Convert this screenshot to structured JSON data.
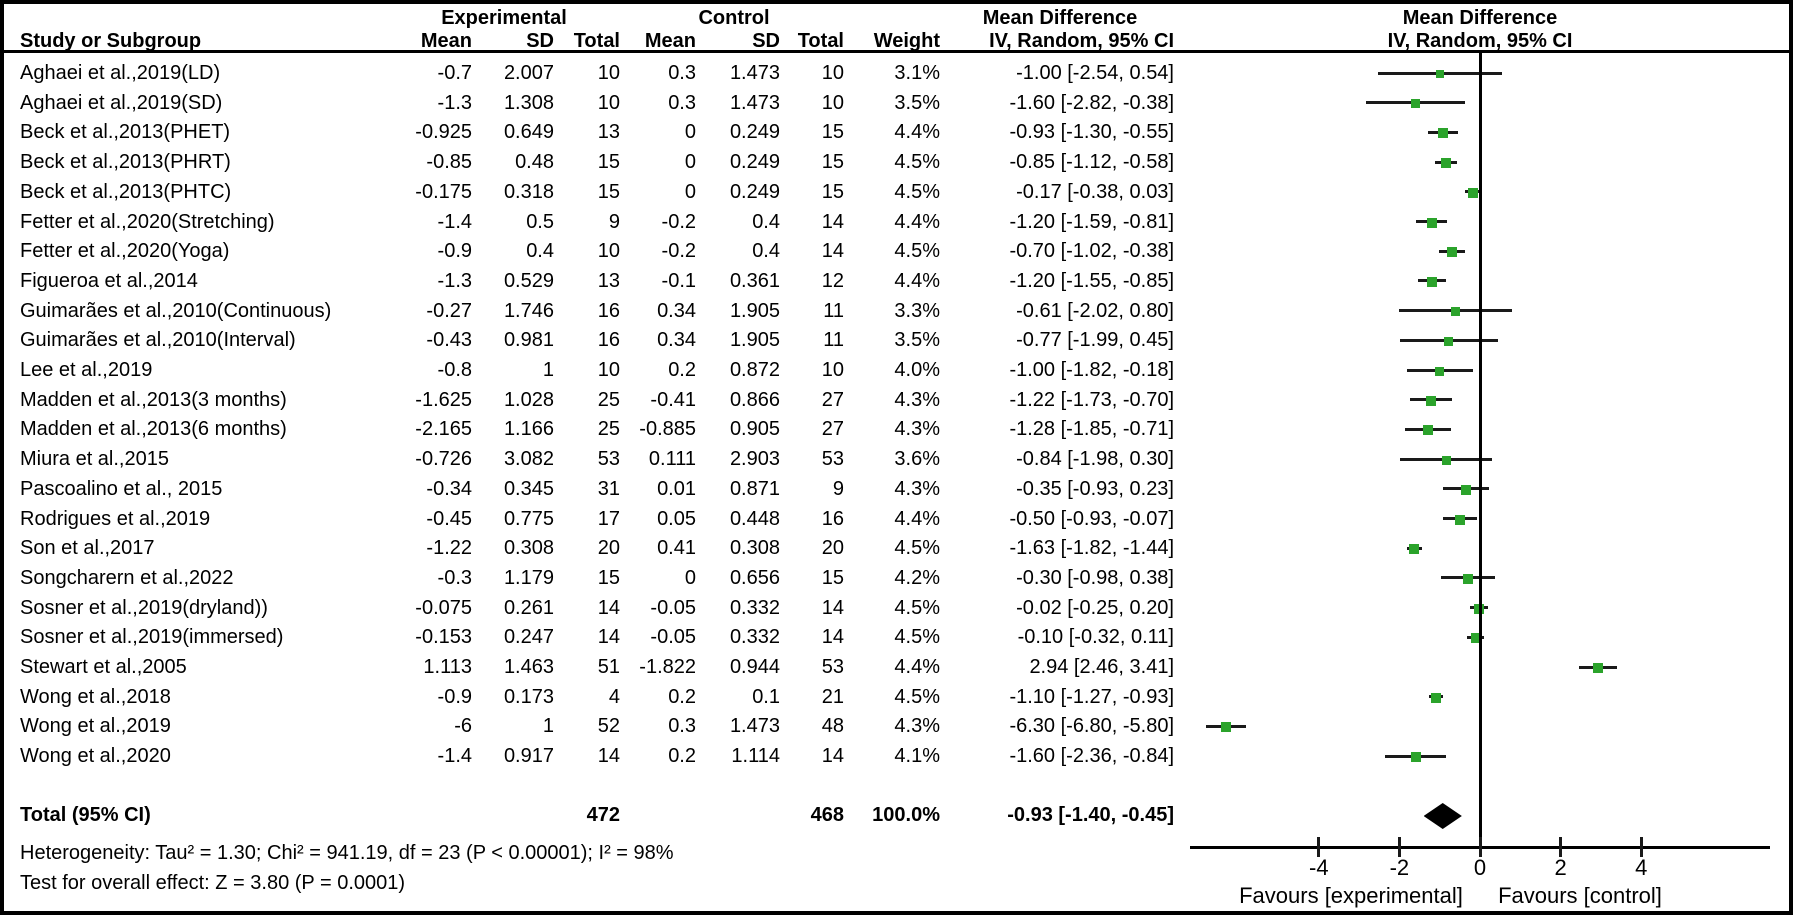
{
  "header": {
    "group_experimental": "Experimental",
    "group_control": "Control",
    "group_mean_difference": "Mean Difference",
    "col_study": "Study or Subgroup",
    "col_mean": "Mean",
    "col_sd": "SD",
    "col_total": "Total",
    "col_weight": "Weight",
    "col_ci": "IV, Random, 95% CI"
  },
  "chart_data": {
    "type": "forest",
    "effect_measure": "Mean Difference",
    "model": "IV, Random, 95% CI",
    "colors": {
      "square": "#2ba32b",
      "diamond": "#000000",
      "line": "#1a1a1a"
    },
    "axis": {
      "ticks": [
        -4,
        -2,
        0,
        2,
        4
      ],
      "range": [
        -7.2,
        7.2
      ],
      "zero_line": 0,
      "favours_left": "Favours [experimental]",
      "favours_right": "Favours [control]"
    },
    "studies": [
      {
        "name": "Aghaei et al.,2019(LD)",
        "exp_mean": "-0.7",
        "exp_sd": "2.007",
        "exp_total": "10",
        "ctrl_mean": "0.3",
        "ctrl_sd": "1.473",
        "ctrl_total": "10",
        "weight": "3.1%",
        "weight_value": 3.1,
        "md": -1.0,
        "ci_low": -2.54,
        "ci_high": 0.54,
        "ci_label": "-1.00 [-2.54, 0.54]"
      },
      {
        "name": "Aghaei et al.,2019(SD)",
        "exp_mean": "-1.3",
        "exp_sd": "1.308",
        "exp_total": "10",
        "ctrl_mean": "0.3",
        "ctrl_sd": "1.473",
        "ctrl_total": "10",
        "weight": "3.5%",
        "weight_value": 3.5,
        "md": -1.6,
        "ci_low": -2.82,
        "ci_high": -0.38,
        "ci_label": "-1.60 [-2.82, -0.38]"
      },
      {
        "name": "Beck et al.,2013(PHET)",
        "exp_mean": "-0.925",
        "exp_sd": "0.649",
        "exp_total": "13",
        "ctrl_mean": "0",
        "ctrl_sd": "0.249",
        "ctrl_total": "15",
        "weight": "4.4%",
        "weight_value": 4.4,
        "md": -0.93,
        "ci_low": -1.3,
        "ci_high": -0.55,
        "ci_label": "-0.93 [-1.30, -0.55]"
      },
      {
        "name": "Beck et al.,2013(PHRT)",
        "exp_mean": "-0.85",
        "exp_sd": "0.48",
        "exp_total": "15",
        "ctrl_mean": "0",
        "ctrl_sd": "0.249",
        "ctrl_total": "15",
        "weight": "4.5%",
        "weight_value": 4.5,
        "md": -0.85,
        "ci_low": -1.12,
        "ci_high": -0.58,
        "ci_label": "-0.85 [-1.12, -0.58]"
      },
      {
        "name": "Beck et al.,2013(PHTC)",
        "exp_mean": "-0.175",
        "exp_sd": "0.318",
        "exp_total": "15",
        "ctrl_mean": "0",
        "ctrl_sd": "0.249",
        "ctrl_total": "15",
        "weight": "4.5%",
        "weight_value": 4.5,
        "md": -0.17,
        "ci_low": -0.38,
        "ci_high": 0.03,
        "ci_label": "-0.17 [-0.38, 0.03]"
      },
      {
        "name": "Fetter et al.,2020(Stretching)",
        "exp_mean": "-1.4",
        "exp_sd": "0.5",
        "exp_total": "9",
        "ctrl_mean": "-0.2",
        "ctrl_sd": "0.4",
        "ctrl_total": "14",
        "weight": "4.4%",
        "weight_value": 4.4,
        "md": -1.2,
        "ci_low": -1.59,
        "ci_high": -0.81,
        "ci_label": "-1.20 [-1.59, -0.81]"
      },
      {
        "name": "Fetter et al.,2020(Yoga)",
        "exp_mean": "-0.9",
        "exp_sd": "0.4",
        "exp_total": "10",
        "ctrl_mean": "-0.2",
        "ctrl_sd": "0.4",
        "ctrl_total": "14",
        "weight": "4.5%",
        "weight_value": 4.5,
        "md": -0.7,
        "ci_low": -1.02,
        "ci_high": -0.38,
        "ci_label": "-0.70 [-1.02, -0.38]"
      },
      {
        "name": "Figueroa et al.,2014",
        "exp_mean": "-1.3",
        "exp_sd": "0.529",
        "exp_total": "13",
        "ctrl_mean": "-0.1",
        "ctrl_sd": "0.361",
        "ctrl_total": "12",
        "weight": "4.4%",
        "weight_value": 4.4,
        "md": -1.2,
        "ci_low": -1.55,
        "ci_high": -0.85,
        "ci_label": "-1.20 [-1.55, -0.85]"
      },
      {
        "name": "Guimarães et al.,2010(Continuous)",
        "exp_mean": "-0.27",
        "exp_sd": "1.746",
        "exp_total": "16",
        "ctrl_mean": "0.34",
        "ctrl_sd": "1.905",
        "ctrl_total": "11",
        "weight": "3.3%",
        "weight_value": 3.3,
        "md": -0.61,
        "ci_low": -2.02,
        "ci_high": 0.8,
        "ci_label": "-0.61 [-2.02, 0.80]"
      },
      {
        "name": "Guimarães et al.,2010(Interval)",
        "exp_mean": "-0.43",
        "exp_sd": "0.981",
        "exp_total": "16",
        "ctrl_mean": "0.34",
        "ctrl_sd": "1.905",
        "ctrl_total": "11",
        "weight": "3.5%",
        "weight_value": 3.5,
        "md": -0.77,
        "ci_low": -1.99,
        "ci_high": 0.45,
        "ci_label": "-0.77 [-1.99, 0.45]"
      },
      {
        "name": "Lee et al.,2019",
        "exp_mean": "-0.8",
        "exp_sd": "1",
        "exp_total": "10",
        "ctrl_mean": "0.2",
        "ctrl_sd": "0.872",
        "ctrl_total": "10",
        "weight": "4.0%",
        "weight_value": 4.0,
        "md": -1.0,
        "ci_low": -1.82,
        "ci_high": -0.18,
        "ci_label": "-1.00 [-1.82, -0.18]"
      },
      {
        "name": "Madden et al.,2013(3 months)",
        "exp_mean": "-1.625",
        "exp_sd": "1.028",
        "exp_total": "25",
        "ctrl_mean": "-0.41",
        "ctrl_sd": "0.866",
        "ctrl_total": "27",
        "weight": "4.3%",
        "weight_value": 4.3,
        "md": -1.22,
        "ci_low": -1.73,
        "ci_high": -0.7,
        "ci_label": "-1.22 [-1.73, -0.70]"
      },
      {
        "name": "Madden et al.,2013(6 months)",
        "exp_mean": "-2.165",
        "exp_sd": "1.166",
        "exp_total": "25",
        "ctrl_mean": "-0.885",
        "ctrl_sd": "0.905",
        "ctrl_total": "27",
        "weight": "4.3%",
        "weight_value": 4.3,
        "md": -1.28,
        "ci_low": -1.85,
        "ci_high": -0.71,
        "ci_label": "-1.28 [-1.85, -0.71]"
      },
      {
        "name": "Miura et al.,2015",
        "exp_mean": "-0.726",
        "exp_sd": "3.082",
        "exp_total": "53",
        "ctrl_mean": "0.111",
        "ctrl_sd": "2.903",
        "ctrl_total": "53",
        "weight": "3.6%",
        "weight_value": 3.6,
        "md": -0.84,
        "ci_low": -1.98,
        "ci_high": 0.3,
        "ci_label": "-0.84 [-1.98, 0.30]"
      },
      {
        "name": "Pascoalino et al., 2015",
        "exp_mean": "-0.34",
        "exp_sd": "0.345",
        "exp_total": "31",
        "ctrl_mean": "0.01",
        "ctrl_sd": "0.871",
        "ctrl_total": "9",
        "weight": "4.3%",
        "weight_value": 4.3,
        "md": -0.35,
        "ci_low": -0.93,
        "ci_high": 0.23,
        "ci_label": "-0.35 [-0.93, 0.23]"
      },
      {
        "name": "Rodrigues et al.,2019",
        "exp_mean": "-0.45",
        "exp_sd": "0.775",
        "exp_total": "17",
        "ctrl_mean": "0.05",
        "ctrl_sd": "0.448",
        "ctrl_total": "16",
        "weight": "4.4%",
        "weight_value": 4.4,
        "md": -0.5,
        "ci_low": -0.93,
        "ci_high": -0.07,
        "ci_label": "-0.50 [-0.93, -0.07]"
      },
      {
        "name": "Son et al.,2017",
        "exp_mean": "-1.22",
        "exp_sd": "0.308",
        "exp_total": "20",
        "ctrl_mean": "0.41",
        "ctrl_sd": "0.308",
        "ctrl_total": "20",
        "weight": "4.5%",
        "weight_value": 4.5,
        "md": -1.63,
        "ci_low": -1.82,
        "ci_high": -1.44,
        "ci_label": "-1.63 [-1.82, -1.44]"
      },
      {
        "name": "Songcharern et al.,2022",
        "exp_mean": "-0.3",
        "exp_sd": "1.179",
        "exp_total": "15",
        "ctrl_mean": "0",
        "ctrl_sd": "0.656",
        "ctrl_total": "15",
        "weight": "4.2%",
        "weight_value": 4.2,
        "md": -0.3,
        "ci_low": -0.98,
        "ci_high": 0.38,
        "ci_label": "-0.30 [-0.98, 0.38]"
      },
      {
        "name": "Sosner et al.,2019(dryland))",
        "exp_mean": "-0.075",
        "exp_sd": "0.261",
        "exp_total": "14",
        "ctrl_mean": "-0.05",
        "ctrl_sd": "0.332",
        "ctrl_total": "14",
        "weight": "4.5%",
        "weight_value": 4.5,
        "md": -0.02,
        "ci_low": -0.25,
        "ci_high": 0.2,
        "ci_label": "-0.02 [-0.25, 0.20]"
      },
      {
        "name": "Sosner et al.,2019(immersed)",
        "exp_mean": "-0.153",
        "exp_sd": "0.247",
        "exp_total": "14",
        "ctrl_mean": "-0.05",
        "ctrl_sd": "0.332",
        "ctrl_total": "14",
        "weight": "4.5%",
        "weight_value": 4.5,
        "md": -0.1,
        "ci_low": -0.32,
        "ci_high": 0.11,
        "ci_label": "-0.10 [-0.32, 0.11]"
      },
      {
        "name": "Stewart et al.,2005",
        "exp_mean": "1.113",
        "exp_sd": "1.463",
        "exp_total": "51",
        "ctrl_mean": "-1.822",
        "ctrl_sd": "0.944",
        "ctrl_total": "53",
        "weight": "4.4%",
        "weight_value": 4.4,
        "md": 2.94,
        "ci_low": 2.46,
        "ci_high": 3.41,
        "ci_label": "2.94 [2.46, 3.41]"
      },
      {
        "name": "Wong et al.,2018",
        "exp_mean": "-0.9",
        "exp_sd": "0.173",
        "exp_total": "4",
        "ctrl_mean": "0.2",
        "ctrl_sd": "0.1",
        "ctrl_total": "21",
        "weight": "4.5%",
        "weight_value": 4.5,
        "md": -1.1,
        "ci_low": -1.27,
        "ci_high": -0.93,
        "ci_label": "-1.10 [-1.27, -0.93]"
      },
      {
        "name": "Wong et al.,2019",
        "exp_mean": "-6",
        "exp_sd": "1",
        "exp_total": "52",
        "ctrl_mean": "0.3",
        "ctrl_sd": "1.473",
        "ctrl_total": "48",
        "weight": "4.3%",
        "weight_value": 4.3,
        "md": -6.3,
        "ci_low": -6.8,
        "ci_high": -5.8,
        "ci_label": "-6.30 [-6.80, -5.80]"
      },
      {
        "name": "Wong et al.,2020",
        "exp_mean": "-1.4",
        "exp_sd": "0.917",
        "exp_total": "14",
        "ctrl_mean": "0.2",
        "ctrl_sd": "1.114",
        "ctrl_total": "14",
        "weight": "4.1%",
        "weight_value": 4.1,
        "md": -1.6,
        "ci_low": -2.36,
        "ci_high": -0.84,
        "ci_label": "-1.60 [-2.36, -0.84]"
      }
    ],
    "total": {
      "label": "Total (95% CI)",
      "exp_total": "472",
      "ctrl_total": "468",
      "weight": "100.0%",
      "md": -0.93,
      "ci_low": -1.4,
      "ci_high": -0.45,
      "ci_label": "-0.93 [-1.40, -0.45]"
    },
    "footnotes": {
      "heterogeneity": "Heterogeneity: Tau² = 1.30; Chi² = 941.19, df = 23 (P < 0.00001); I² = 98%",
      "overall_effect": "Test for overall effect: Z = 3.80 (P = 0.0001)"
    }
  }
}
